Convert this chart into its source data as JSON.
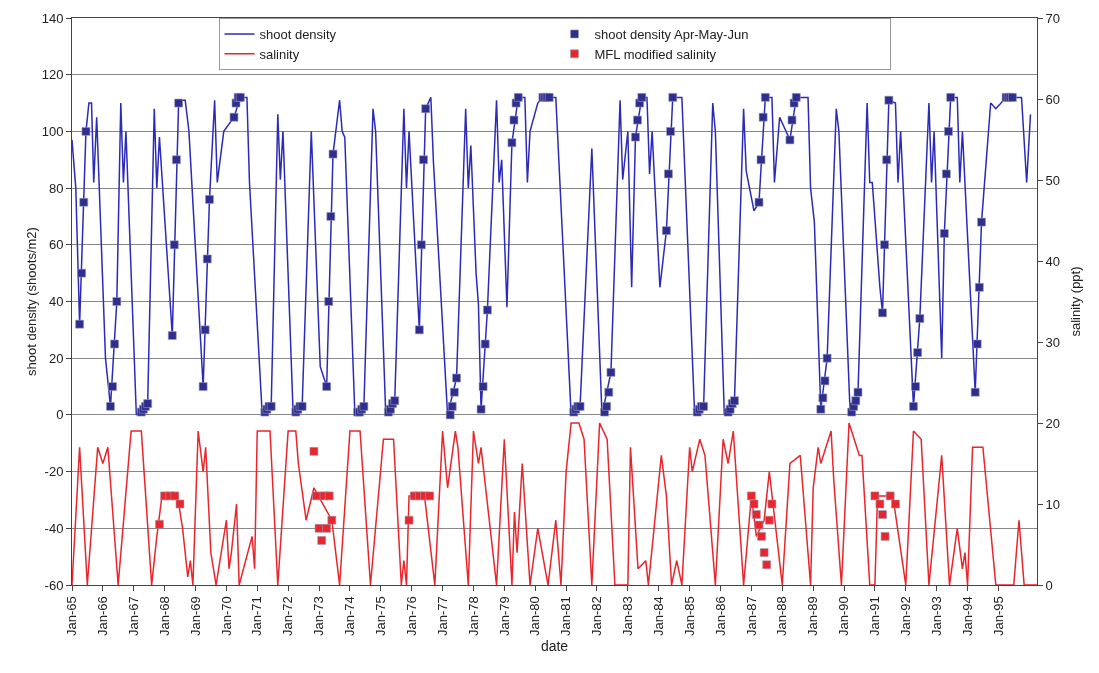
{
  "chart_data": {
    "type": "line",
    "xlabel": "date",
    "ylabel": "shoot density (shoots/m2)",
    "y2label": "salinity (ppt)",
    "xlim": [
      "1965-01",
      "1996-04"
    ],
    "xticks": [
      {
        "value": "1965-01",
        "label": "Jan-65"
      },
      {
        "value": "1966-01",
        "label": "Jan-66"
      },
      {
        "value": "1967-01",
        "label": "Jan-67"
      },
      {
        "value": "1968-01",
        "label": "Jan-68"
      },
      {
        "value": "1969-01",
        "label": "Jan-69"
      },
      {
        "value": "1970-01",
        "label": "Jan-70"
      },
      {
        "value": "1971-01",
        "label": "Jan-71"
      },
      {
        "value": "1972-01",
        "label": "Jan-72"
      },
      {
        "value": "1973-01",
        "label": "Jan-73"
      },
      {
        "value": "1974-01",
        "label": "Jan-74"
      },
      {
        "value": "1975-01",
        "label": "Jan-75"
      },
      {
        "value": "1976-01",
        "label": "Jan-76"
      },
      {
        "value": "1977-01",
        "label": "Jan-77"
      },
      {
        "value": "1978-01",
        "label": "Jan-78"
      },
      {
        "value": "1979-01",
        "label": "Jan-79"
      },
      {
        "value": "1980-01",
        "label": "Jan-80"
      },
      {
        "value": "1981-01",
        "label": "Jan-81"
      },
      {
        "value": "1982-01",
        "label": "Jan-82"
      },
      {
        "value": "1983-01",
        "label": "Jan-83"
      },
      {
        "value": "1984-01",
        "label": "Jan-84"
      },
      {
        "value": "1985-01",
        "label": "Jan-85"
      },
      {
        "value": "1986-01",
        "label": "Jan-86"
      },
      {
        "value": "1987-01",
        "label": "Jan-87"
      },
      {
        "value": "1988-01",
        "label": "Jan-88"
      },
      {
        "value": "1989-01",
        "label": "Jan-89"
      },
      {
        "value": "1990-01",
        "label": "Jan-90"
      },
      {
        "value": "1991-01",
        "label": "Jan-91"
      },
      {
        "value": "1992-01",
        "label": "Jan-92"
      },
      {
        "value": "1993-01",
        "label": "Jan-93"
      },
      {
        "value": "1994-01",
        "label": "Jan-94"
      },
      {
        "value": "1995-01",
        "label": "Jan-95"
      }
    ],
    "ylim": [
      -60,
      140
    ],
    "yticks": [
      -60,
      -40,
      -20,
      0,
      20,
      40,
      60,
      80,
      100,
      120,
      140
    ],
    "y2lim": [
      0,
      70
    ],
    "y2ticks": [
      0,
      10,
      20,
      30,
      40,
      50,
      60,
      70
    ],
    "grid": "y",
    "legend": "top",
    "series": [
      {
        "name": "shoot density",
        "marker": "none",
        "color": "#2b2bb8",
        "x": [
          "1965-01-01",
          "1965-02-15",
          "1965-04-01",
          "1965-06-15",
          "1965-07-20",
          "1965-08-20",
          "1965-09-15",
          "1965-10-20",
          "1966-02-01",
          "1966-04-01",
          "1966-06-15",
          "1966-08-01",
          "1966-09-01",
          "1966-10-01",
          "1967-02-01",
          "1967-06-15",
          "1967-09-01",
          "1967-10-01",
          "1967-11-01",
          "1968-04-01",
          "1968-06-15",
          "1968-07-15",
          "1968-09-01",
          "1968-10-15",
          "1969-04-01",
          "1969-06-15",
          "1969-08-15",
          "1969-09-15",
          "1969-12-01",
          "1970-04-01",
          "1970-06-15",
          "1970-09-01",
          "1970-10-01",
          "1971-03-01",
          "1971-06-15",
          "1971-09-01",
          "1971-10-01",
          "1971-11-01",
          "1972-03-01",
          "1972-06-15",
          "1972-10-01",
          "1973-01-15",
          "1973-04-01",
          "1973-06-15",
          "1973-09-01",
          "1973-10-01",
          "1973-11-01",
          "1974-03-01",
          "1974-06-15",
          "1974-10-01",
          "1974-11-01",
          "1975-03-01",
          "1975-06-15",
          "1975-10-01",
          "1975-11-01",
          "1975-12-01",
          "1976-04-01",
          "1976-06-15",
          "1976-08-15",
          "1976-09-15",
          "1977-03-01",
          "1977-06-15",
          "1977-10-01",
          "1977-11-01",
          "1977-12-01",
          "1978-02-01",
          "1978-03-01",
          "1978-04-01",
          "1978-06-15",
          "1978-10-01",
          "1978-11-01",
          "1978-12-01",
          "1979-02-01",
          "1979-04-01",
          "1979-06-15",
          "1979-09-01",
          "1979-10-01",
          "1979-11-01",
          "1980-02-01",
          "1980-04-01",
          "1980-06-15",
          "1980-09-01",
          "1981-03-01",
          "1981-06-15",
          "1981-11-01",
          "1982-03-01",
          "1982-06-15",
          "1982-10-01",
          "1982-11-01",
          "1983-01-01",
          "1983-02-15",
          "1983-04-01",
          "1983-06-15",
          "1983-08-15",
          "1983-09-15",
          "1983-10-15",
          "1984-01-15",
          "1984-04-01",
          "1984-06-15",
          "1984-10-01",
          "1985-03-01",
          "1985-06-15",
          "1985-10-01",
          "1985-11-01",
          "1986-02-15",
          "1986-06-15",
          "1986-10-01",
          "1986-11-01",
          "1987-02-01",
          "1987-04-01",
          "1987-06-15",
          "1987-09-01",
          "1987-10-01",
          "1987-12-01",
          "1988-04-01",
          "1988-06-15",
          "1988-11-01",
          "1988-12-01",
          "1989-01-15",
          "1989-04-01",
          "1989-06-15",
          "1989-10-01",
          "1989-11-01",
          "1990-03-15",
          "1990-06-15",
          "1990-10-01",
          "1990-11-01",
          "1990-12-01",
          "1991-03-01",
          "1991-04-01",
          "1991-06-15",
          "1991-09-01",
          "1991-10-01",
          "1991-11-01",
          "1992-04-01",
          "1992-06-15",
          "1992-10-01",
          "1992-11-01",
          "1992-12-01",
          "1993-03-01",
          "1993-04-01",
          "1993-06-15",
          "1993-09-01",
          "1993-10-01",
          "1993-11-01",
          "1994-04-01",
          "1994-06-15",
          "1994-10-01",
          "1994-12-01",
          "1995-04-01",
          "1995-06-15",
          "1995-10-01",
          "1995-12-01",
          "1996-01-15"
        ],
        "values": [
          97,
          80,
          32,
          100,
          110,
          110,
          82,
          105,
          20,
          3,
          40,
          110,
          82,
          100,
          0,
          4,
          108,
          80,
          98,
          28,
          110,
          111,
          111,
          100,
          10,
          76,
          111,
          82,
          100,
          105,
          112,
          112,
          82,
          0,
          3,
          106,
          83,
          100,
          0,
          3,
          100,
          17,
          10,
          92,
          111,
          100,
          98,
          0,
          3,
          108,
          100,
          0,
          5,
          108,
          80,
          100,
          30,
          108,
          112,
          89,
          0,
          13,
          108,
          80,
          95,
          50,
          39,
          2,
          37,
          111,
          82,
          90,
          38,
          96,
          112,
          112,
          82,
          100,
          110,
          112,
          112,
          112,
          0,
          3,
          94,
          0,
          15,
          111,
          83,
          100,
          45,
          98,
          112,
          112,
          85,
          100,
          45,
          65,
          112,
          112,
          0,
          3,
          110,
          100,
          0,
          5,
          108,
          86,
          72,
          75,
          112,
          112,
          82,
          105,
          97,
          112,
          112,
          80,
          68,
          2,
          20,
          108,
          100,
          0,
          8,
          110,
          82,
          82,
          45,
          36,
          111,
          110,
          82,
          100,
          3,
          34,
          110,
          82,
          100,
          20,
          64,
          112,
          112,
          82,
          100,
          8,
          68,
          110,
          108,
          112,
          112,
          112,
          82,
          106
        ]
      },
      {
        "name": "shoot density Apr-May-Jun",
        "type": "scatter",
        "marker": "square",
        "color": "#2e2e8e",
        "x": [
          "1965-04-01",
          "1965-04-25",
          "1965-05-20",
          "1965-06-15",
          "1966-04-01",
          "1966-04-25",
          "1966-05-20",
          "1966-06-15",
          "1967-04-01",
          "1967-04-25",
          "1967-05-20",
          "1967-06-15",
          "1968-04-01",
          "1968-04-25",
          "1968-05-20",
          "1968-06-15",
          "1969-04-01",
          "1969-04-25",
          "1969-05-20",
          "1969-06-15",
          "1970-04-01",
          "1970-04-25",
          "1970-05-20",
          "1970-06-15",
          "1971-04-01",
          "1971-04-25",
          "1971-05-20",
          "1971-06-15",
          "1972-04-01",
          "1972-04-25",
          "1972-05-20",
          "1972-06-15",
          "1973-04-01",
          "1973-04-25",
          "1973-05-20",
          "1973-06-15",
          "1974-04-01",
          "1974-04-25",
          "1974-05-20",
          "1974-06-15",
          "1975-04-01",
          "1975-04-25",
          "1975-05-20",
          "1975-06-15",
          "1976-04-01",
          "1976-04-25",
          "1976-05-20",
          "1976-06-15",
          "1977-04-01",
          "1977-04-25",
          "1977-05-20",
          "1977-06-15",
          "1978-04-01",
          "1978-04-25",
          "1978-05-20",
          "1978-06-15",
          "1979-04-01",
          "1979-04-25",
          "1979-05-20",
          "1979-06-15",
          "1980-04-01",
          "1980-04-25",
          "1980-05-20",
          "1980-06-15",
          "1981-04-01",
          "1981-04-25",
          "1981-05-20",
          "1981-06-15",
          "1982-04-01",
          "1982-04-25",
          "1982-05-20",
          "1982-06-15",
          "1983-04-01",
          "1983-04-25",
          "1983-05-20",
          "1983-06-15",
          "1984-04-01",
          "1984-04-25",
          "1984-05-20",
          "1984-06-15",
          "1985-04-01",
          "1985-04-25",
          "1985-05-20",
          "1985-06-15",
          "1986-04-01",
          "1986-04-25",
          "1986-05-20",
          "1986-06-15",
          "1987-04-01",
          "1987-04-25",
          "1987-05-20",
          "1987-06-15",
          "1988-04-01",
          "1988-04-25",
          "1988-05-20",
          "1988-06-15",
          "1989-04-01",
          "1989-04-25",
          "1989-05-20",
          "1989-06-15",
          "1990-04-01",
          "1990-04-25",
          "1990-05-20",
          "1990-06-15",
          "1991-04-01",
          "1991-04-25",
          "1991-05-20",
          "1991-06-15",
          "1992-04-01",
          "1992-04-25",
          "1992-05-20",
          "1992-06-15",
          "1993-04-01",
          "1993-04-25",
          "1993-05-20",
          "1993-06-15",
          "1994-04-01",
          "1994-04-25",
          "1994-05-20",
          "1994-06-15",
          "1995-04-01",
          "1995-04-25",
          "1995-05-20",
          "1995-06-15"
        ],
        "values": [
          32,
          50,
          75,
          100,
          3,
          10,
          25,
          40,
          1,
          2,
          3,
          4,
          28,
          60,
          90,
          110,
          10,
          30,
          55,
          76,
          105,
          110,
          112,
          112,
          1,
          2,
          3,
          3,
          1,
          2,
          3,
          3,
          10,
          40,
          70,
          92,
          1,
          1,
          2,
          3,
          1,
          2,
          4,
          5,
          30,
          60,
          90,
          108,
          0,
          3,
          8,
          13,
          2,
          10,
          25,
          37,
          96,
          104,
          110,
          112,
          112,
          112,
          112,
          112,
          1,
          2,
          3,
          3,
          1,
          3,
          8,
          15,
          98,
          104,
          110,
          112,
          65,
          85,
          100,
          112,
          1,
          2,
          3,
          3,
          1,
          2,
          4,
          5,
          75,
          90,
          105,
          112,
          97,
          104,
          110,
          112,
          2,
          6,
          12,
          20,
          1,
          3,
          5,
          8,
          36,
          60,
          90,
          111,
          3,
          10,
          22,
          34,
          64,
          85,
          100,
          112,
          8,
          25,
          45,
          68,
          112,
          112,
          112,
          112
        ]
      },
      {
        "name": "salinity",
        "marker": "none",
        "axis": "y2",
        "color": "#e8262c",
        "x": [
          "1965-01",
          "1965-04",
          "1965-07",
          "1965-11",
          "1966-01",
          "1966-03",
          "1966-07",
          "1966-12",
          "1967-04",
          "1967-08",
          "1967-10",
          "1967-12",
          "1968-06",
          "1968-08",
          "1968-10",
          "1968-11",
          "1968-12",
          "1969-02",
          "1969-04",
          "1969-05",
          "1969-07",
          "1969-09",
          "1970-01",
          "1970-02",
          "1970-03",
          "1970-05",
          "1970-06",
          "1970-11",
          "1970-12",
          "1971-01",
          "1971-06",
          "1971-09",
          "1972-01",
          "1972-04",
          "1972-05",
          "1972-08",
          "1972-11",
          "1973-06",
          "1973-09",
          "1974-01",
          "1974-05",
          "1974-09",
          "1975-02",
          "1975-06",
          "1975-09",
          "1975-10",
          "1975-11",
          "1975-12",
          "1976-06",
          "1976-10",
          "1977-01",
          "1977-03",
          "1977-06",
          "1977-07",
          "1977-11",
          "1978-01",
          "1978-03",
          "1978-04",
          "1978-10",
          "1979-01",
          "1979-04",
          "1979-05",
          "1979-06",
          "1979-08",
          "1979-11",
          "1980-02",
          "1980-06",
          "1980-09",
          "1980-11",
          "1981-01",
          "1981-03",
          "1981-06",
          "1981-08",
          "1981-11",
          "1982-02",
          "1982-05",
          "1982-08",
          "1983-01",
          "1983-02",
          "1983-05",
          "1983-08",
          "1983-09",
          "1984-02",
          "1984-04",
          "1984-06",
          "1984-08",
          "1984-10",
          "1985-01",
          "1985-02",
          "1985-05",
          "1985-07",
          "1985-11",
          "1986-02",
          "1986-04",
          "1986-06",
          "1986-10",
          "1987-01",
          "1987-03",
          "1987-06",
          "1987-08",
          "1988-01",
          "1988-04",
          "1988-08",
          "1988-12",
          "1989-01",
          "1989-03",
          "1989-04",
          "1989-08",
          "1989-09",
          "1989-12",
          "1990-03",
          "1990-05",
          "1990-07",
          "1990-08",
          "1990-11",
          "1991-01",
          "1991-02",
          "1991-08",
          "1992-01",
          "1992-04",
          "1992-07",
          "1992-10",
          "1993-03",
          "1993-06",
          "1993-09",
          "1993-11",
          "1993-12",
          "1994-01",
          "1994-03",
          "1994-07",
          "1994-12",
          "1995-07",
          "1995-09",
          "1995-11",
          "1996-04"
        ],
        "values": [
          0,
          17,
          0,
          17,
          15,
          17,
          0,
          19,
          19,
          0,
          6,
          11,
          11,
          7,
          1,
          3,
          0,
          19,
          14,
          17,
          4,
          0,
          8,
          2,
          4,
          10,
          0,
          6,
          2,
          19,
          19,
          0,
          19,
          19,
          15,
          8,
          12,
          8,
          0,
          19,
          19,
          0,
          18,
          18,
          0,
          3,
          0,
          11,
          11,
          0,
          19,
          12,
          19,
          17,
          0,
          19,
          15,
          17,
          0,
          18,
          0,
          9,
          4,
          15,
          0,
          7,
          0,
          8,
          0,
          14,
          20,
          20,
          18,
          0,
          20,
          18,
          0,
          0,
          17,
          2,
          3,
          0,
          16,
          11,
          0,
          3,
          0,
          17,
          14,
          18,
          16,
          0,
          18,
          15,
          19,
          0,
          11,
          6,
          8,
          14,
          0,
          15,
          16,
          0,
          12,
          17,
          15,
          19,
          13,
          0,
          20,
          18,
          16,
          16,
          0,
          0,
          11,
          11,
          0,
          19,
          18,
          0,
          16,
          0,
          7,
          2,
          4,
          0,
          17,
          17,
          0,
          0,
          8,
          0,
          0
        ]
      },
      {
        "name": "MFL modified salinity",
        "type": "scatter",
        "marker": "square",
        "axis": "y2",
        "color": "#e8262c",
        "x": [
          "1967-11",
          "1968-01",
          "1968-03",
          "1968-05",
          "1968-07",
          "1972-11",
          "1972-12",
          "1973-01",
          "1973-02",
          "1973-03",
          "1973-04",
          "1973-05",
          "1973-06",
          "1975-12",
          "1976-02",
          "1976-04",
          "1976-06",
          "1976-08",
          "1987-01",
          "1987-02",
          "1987-03",
          "1987-04",
          "1987-05",
          "1987-06",
          "1987-07",
          "1987-08",
          "1987-09",
          "1991-01",
          "1991-03",
          "1991-04",
          "1991-05",
          "1991-07",
          "1991-09"
        ],
        "values": [
          7.5,
          11,
          11,
          11,
          10,
          16.5,
          11,
          7,
          5.5,
          11,
          7,
          11,
          8,
          8,
          11,
          11,
          11,
          11,
          11,
          10,
          8.7,
          7.4,
          6,
          4,
          2.5,
          8,
          10,
          11,
          10,
          8.7,
          6,
          11,
          10
        ]
      }
    ]
  }
}
